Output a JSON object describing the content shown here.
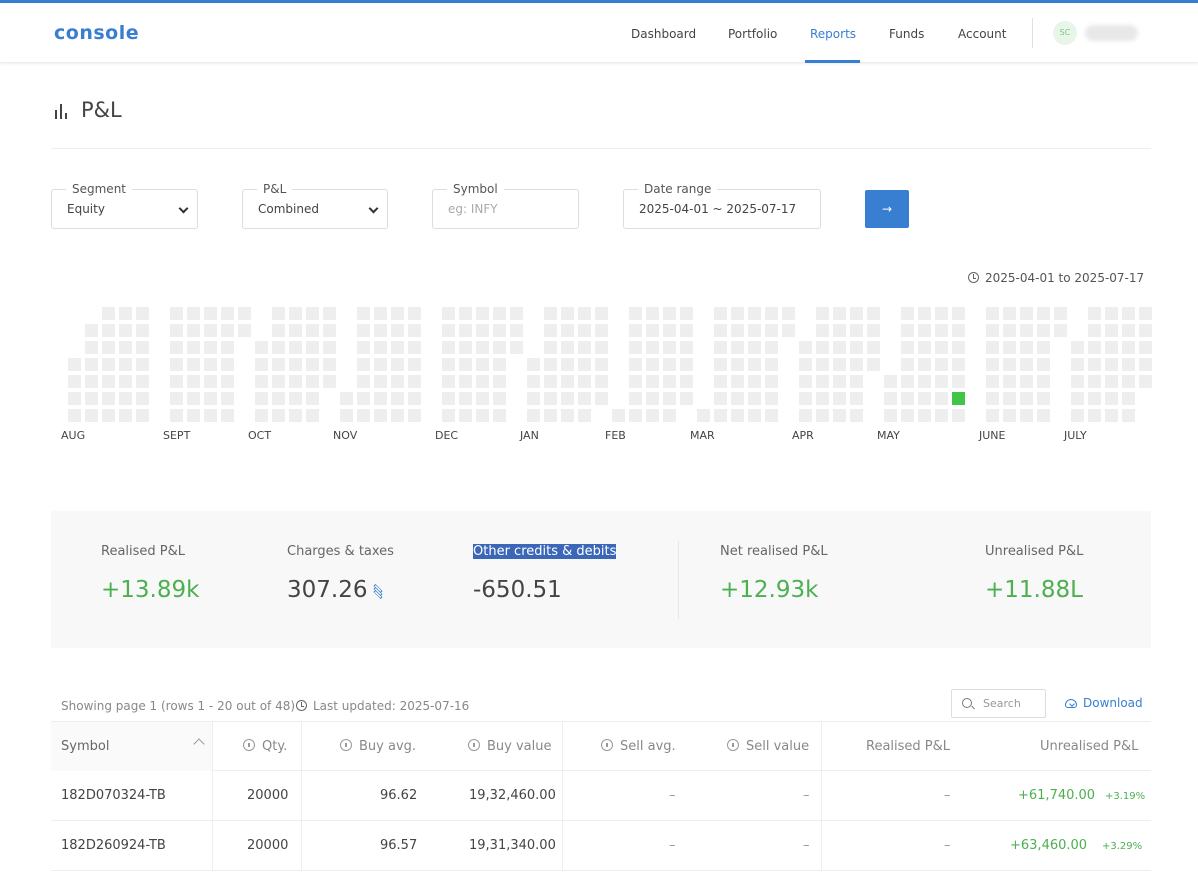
{
  "app": {
    "logo": "console"
  },
  "nav": {
    "items": [
      {
        "label": "Dashboard"
      },
      {
        "label": "Portfolio"
      },
      {
        "label": "Reports",
        "active": true
      },
      {
        "label": "Funds"
      },
      {
        "label": "Account"
      }
    ],
    "avatar_initials": "SC"
  },
  "page": {
    "title": "P&L",
    "icon": "bar-chart-icon"
  },
  "filters": {
    "segment": {
      "label": "Segment",
      "value": "Equity"
    },
    "pnl": {
      "label": "P&L",
      "value": "Combined"
    },
    "symbol": {
      "label": "Symbol",
      "placeholder": "eg: INFY"
    },
    "date_range": {
      "label": "Date range",
      "value": "2025-04-01 ~ 2025-07-17"
    },
    "go_icon": "→"
  },
  "heatmap": {
    "range_text": "2025-04-01 to 2025-07-17",
    "months": [
      "AUG",
      "SEPT",
      "OCT",
      "NOV",
      "DEC",
      "JAN",
      "FEB",
      "MAR",
      "APR",
      "MAY",
      "JUNE",
      "JULY"
    ],
    "empty_color": "#eeeeee",
    "profit_color": "#3fc647"
  },
  "summary": {
    "realised": {
      "label": "Realised P&L",
      "value": "+13.89k"
    },
    "charges": {
      "label": "Charges & taxes",
      "value": "307.26"
    },
    "other": {
      "label": "Other credits & debits",
      "value": "-650.51"
    },
    "net": {
      "label": "Net realised P&L",
      "value": "+12.93k"
    },
    "unrealised": {
      "label": "Unrealised P&L",
      "value": "+11.88L"
    }
  },
  "table_meta": {
    "showing": "Showing page 1 (rows 1 - 20 out of 48)",
    "updated": "Last updated: 2025-07-16",
    "search_placeholder": "Search",
    "download": "Download"
  },
  "columns": [
    "Symbol",
    "Qty.",
    "Buy avg.",
    "Buy value",
    "Sell avg.",
    "Sell value",
    "Realised P&L",
    "Unrealised P&L"
  ],
  "rows": [
    {
      "symbol": "182D070324-TB",
      "qty": "20000",
      "buy_avg": "96.62",
      "buy_value": "19,32,460.00",
      "sell_avg": "–",
      "sell_value": "–",
      "realised": "–",
      "unrealised": "+61,740.00",
      "unrealised_pct": "+3.19%"
    },
    {
      "symbol": "182D260924-TB",
      "qty": "20000",
      "buy_avg": "96.57",
      "buy_value": "19,31,340.00",
      "sell_avg": "–",
      "sell_value": "–",
      "realised": "–",
      "unrealised": "+63,460.00",
      "unrealised_pct": "+3.29%"
    }
  ]
}
